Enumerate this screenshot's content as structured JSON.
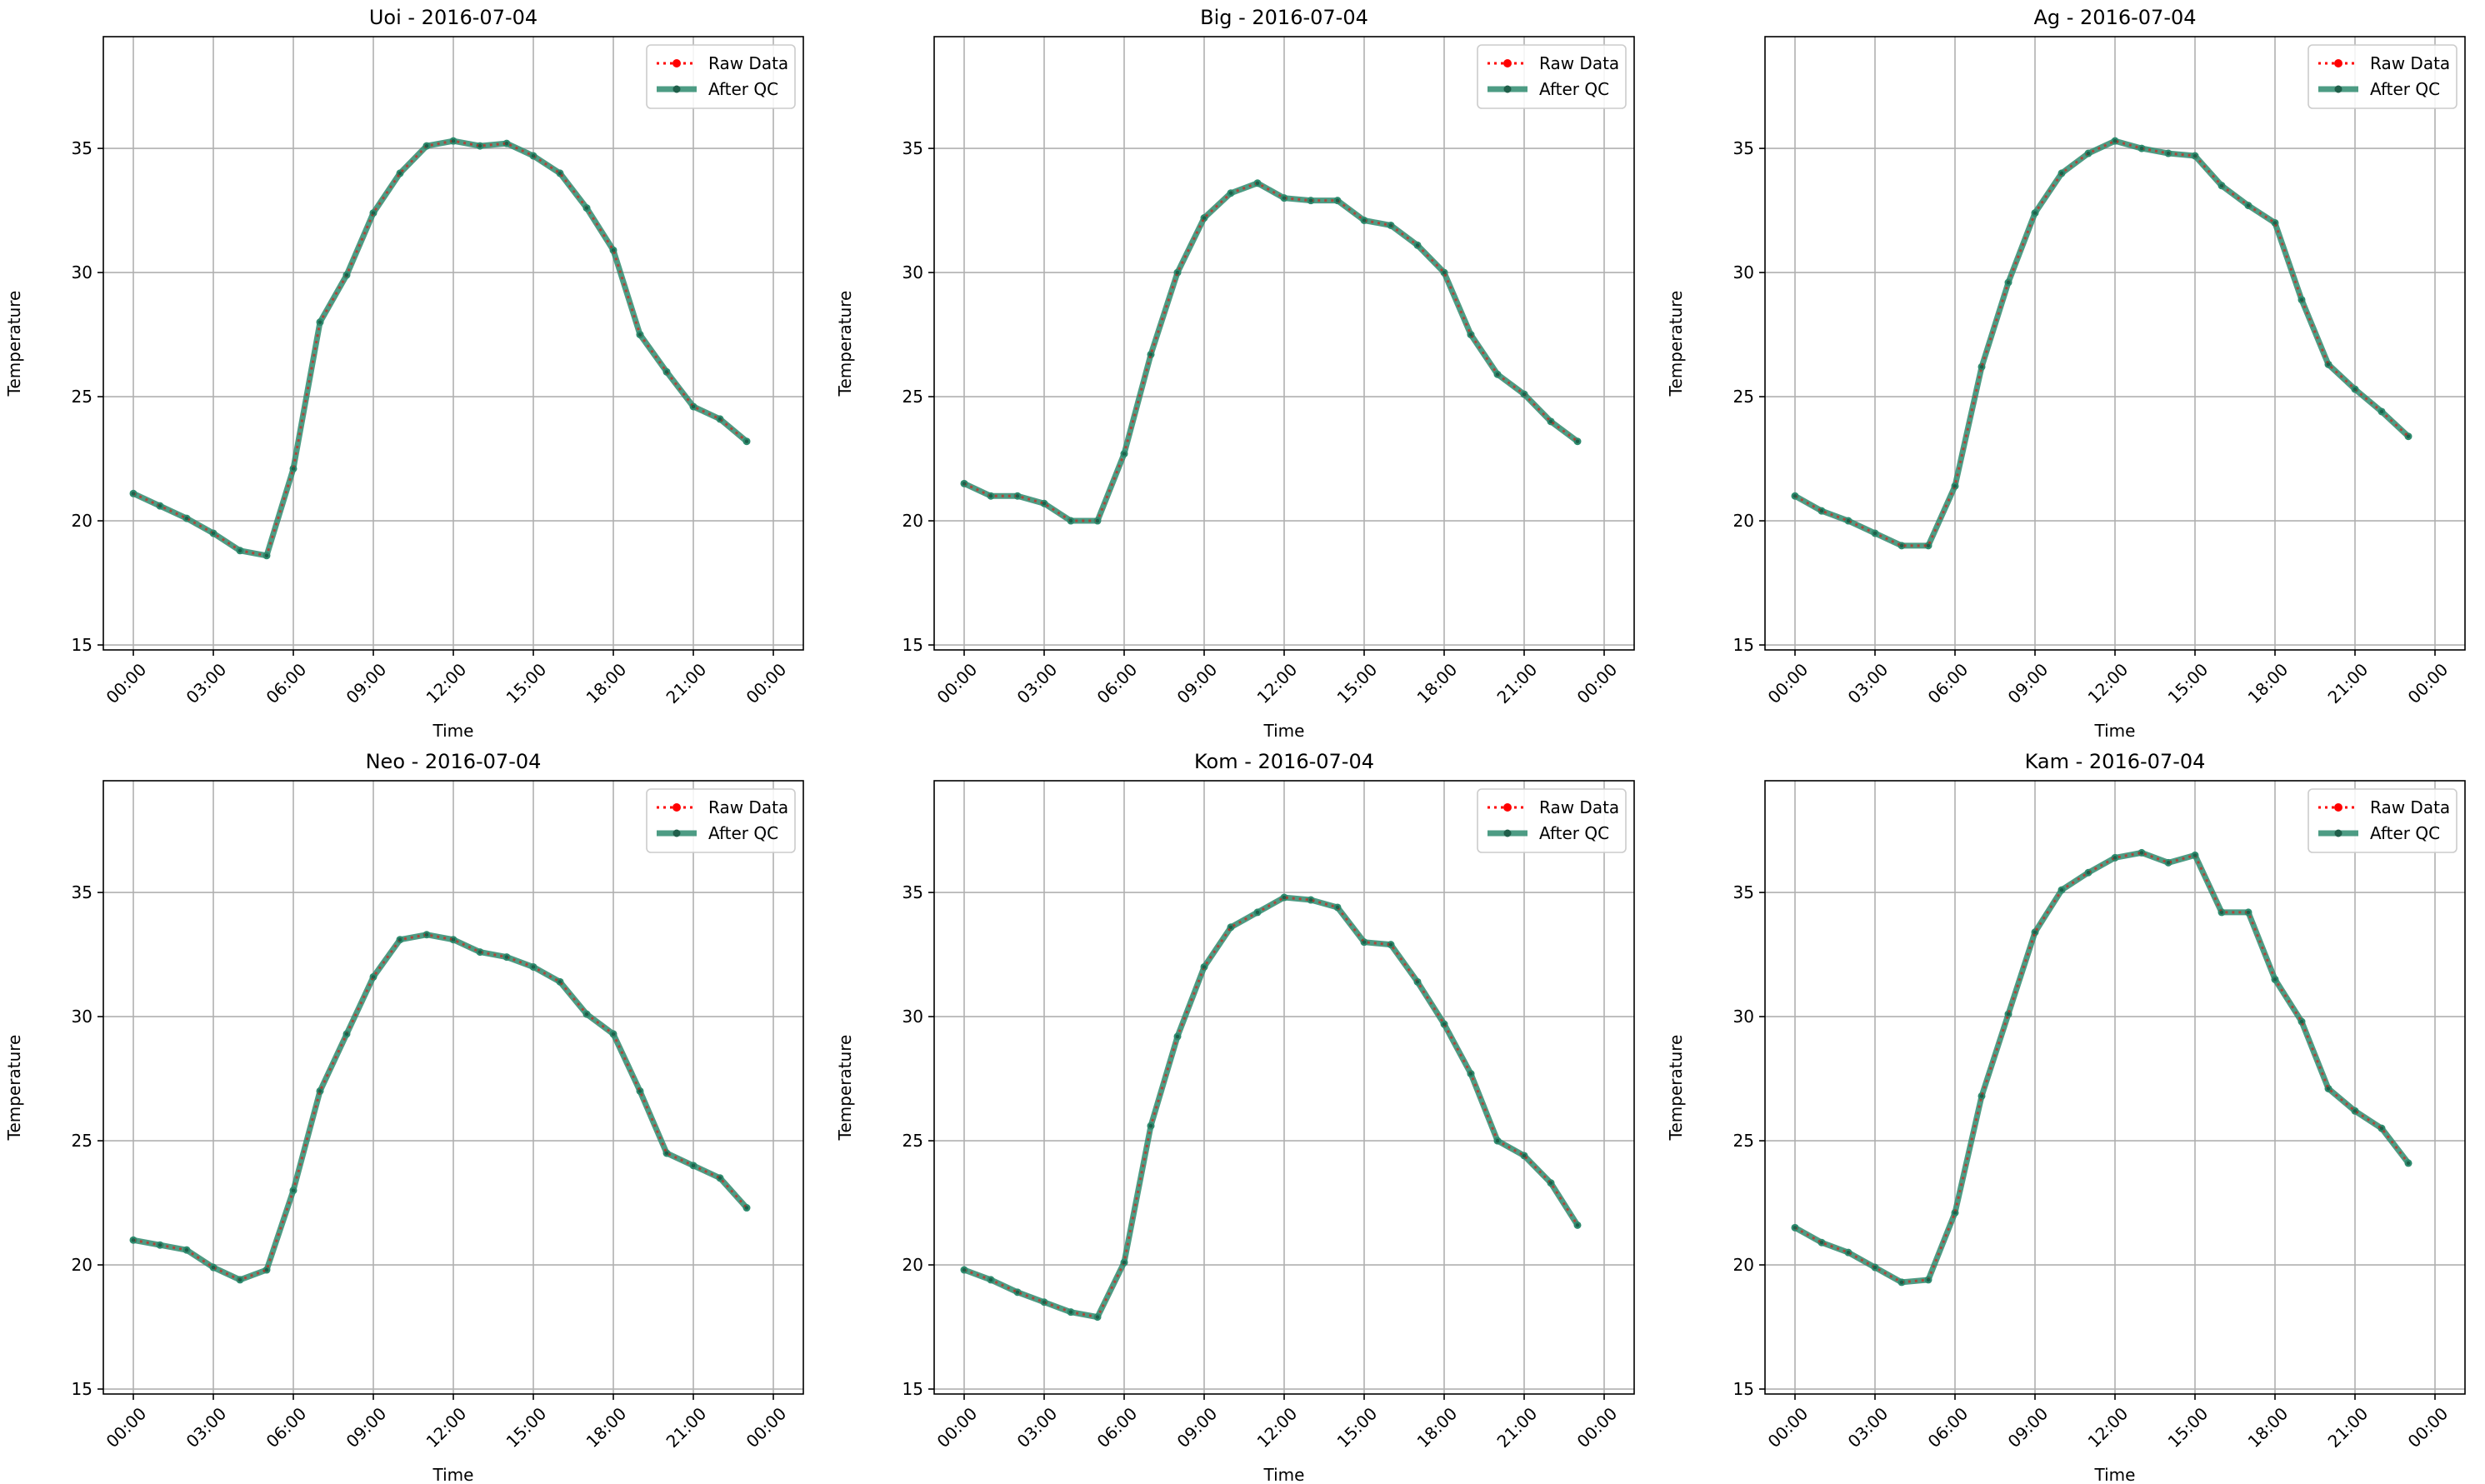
{
  "chart_data": [
    {
      "type": "line",
      "title": "Uoi - 2016-07-04",
      "xlabel": "Time",
      "ylabel": "Temperature",
      "x": [
        "00:00",
        "01:00",
        "02:00",
        "03:00",
        "04:00",
        "05:00",
        "06:00",
        "07:00",
        "08:00",
        "09:00",
        "10:00",
        "11:00",
        "12:00",
        "13:00",
        "14:00",
        "15:00",
        "16:00",
        "17:00",
        "18:00",
        "19:00",
        "20:00",
        "21:00",
        "22:00",
        "23:00"
      ],
      "xtick_labels": [
        "00:00",
        "03:00",
        "06:00",
        "09:00",
        "12:00",
        "15:00",
        "18:00",
        "21:00",
        "00:00"
      ],
      "ytick_labels": [
        "15",
        "20",
        "25",
        "30",
        "35"
      ],
      "ylim": [
        14.8,
        39.5
      ],
      "grid": true,
      "legend": "top-right",
      "series": [
        {
          "name": "Raw Data",
          "color": "#ff0000",
          "values": [
            21.1,
            20.6,
            20.1,
            19.5,
            18.8,
            18.6,
            22.1,
            28.0,
            29.9,
            32.4,
            34.0,
            35.1,
            35.3,
            35.1,
            35.2,
            34.7,
            34.0,
            32.6,
            30.9,
            27.5,
            26.0,
            24.6,
            24.1,
            23.2
          ]
        },
        {
          "name": "After QC",
          "color": "#2e8b6e",
          "values": [
            21.1,
            20.6,
            20.1,
            19.5,
            18.8,
            18.6,
            22.1,
            28.0,
            29.9,
            32.4,
            34.0,
            35.1,
            35.3,
            35.1,
            35.2,
            34.7,
            34.0,
            32.6,
            30.9,
            27.5,
            26.0,
            24.6,
            24.1,
            23.2
          ]
        }
      ]
    },
    {
      "type": "line",
      "title": "Big - 2016-07-04",
      "xlabel": "Time",
      "ylabel": "Temperature",
      "x": [
        "00:00",
        "01:00",
        "02:00",
        "03:00",
        "04:00",
        "05:00",
        "06:00",
        "07:00",
        "08:00",
        "09:00",
        "10:00",
        "11:00",
        "12:00",
        "13:00",
        "14:00",
        "15:00",
        "16:00",
        "17:00",
        "18:00",
        "19:00",
        "20:00",
        "21:00",
        "22:00",
        "23:00"
      ],
      "xtick_labels": [
        "00:00",
        "03:00",
        "06:00",
        "09:00",
        "12:00",
        "15:00",
        "18:00",
        "21:00",
        "00:00"
      ],
      "ytick_labels": [
        "15",
        "20",
        "25",
        "30",
        "35"
      ],
      "ylim": [
        14.8,
        39.5
      ],
      "grid": true,
      "legend": "top-right",
      "series": [
        {
          "name": "Raw Data",
          "color": "#ff0000",
          "values": [
            21.5,
            21.0,
            21.0,
            20.7,
            20.0,
            20.0,
            22.7,
            26.7,
            30.0,
            32.2,
            33.2,
            33.6,
            33.0,
            32.9,
            32.9,
            32.1,
            31.9,
            31.1,
            30.0,
            27.5,
            25.9,
            25.1,
            24.0,
            23.2
          ]
        },
        {
          "name": "After QC",
          "color": "#2e8b6e",
          "values": [
            21.5,
            21.0,
            21.0,
            20.7,
            20.0,
            20.0,
            22.7,
            26.7,
            30.0,
            32.2,
            33.2,
            33.6,
            33.0,
            32.9,
            32.9,
            32.1,
            31.9,
            31.1,
            30.0,
            27.5,
            25.9,
            25.1,
            24.0,
            23.2
          ]
        }
      ]
    },
    {
      "type": "line",
      "title": "Ag - 2016-07-04",
      "xlabel": "Time",
      "ylabel": "Temperature",
      "x": [
        "00:00",
        "01:00",
        "02:00",
        "03:00",
        "04:00",
        "05:00",
        "06:00",
        "07:00",
        "08:00",
        "09:00",
        "10:00",
        "11:00",
        "12:00",
        "13:00",
        "14:00",
        "15:00",
        "16:00",
        "17:00",
        "18:00",
        "19:00",
        "20:00",
        "21:00",
        "22:00",
        "23:00"
      ],
      "xtick_labels": [
        "00:00",
        "03:00",
        "06:00",
        "09:00",
        "12:00",
        "15:00",
        "18:00",
        "21:00",
        "00:00"
      ],
      "ytick_labels": [
        "15",
        "20",
        "25",
        "30",
        "35"
      ],
      "ylim": [
        14.8,
        39.5
      ],
      "grid": true,
      "legend": "top-right",
      "series": [
        {
          "name": "Raw Data",
          "color": "#ff0000",
          "values": [
            21.0,
            20.4,
            20.0,
            19.5,
            19.0,
            19.0,
            21.4,
            26.2,
            29.6,
            32.4,
            34.0,
            34.8,
            35.3,
            35.0,
            34.8,
            34.7,
            33.5,
            32.7,
            32.0,
            28.9,
            26.3,
            25.3,
            24.4,
            23.4
          ]
        },
        {
          "name": "After QC",
          "color": "#2e8b6e",
          "values": [
            21.0,
            20.4,
            20.0,
            19.5,
            19.0,
            19.0,
            21.4,
            26.2,
            29.6,
            32.4,
            34.0,
            34.8,
            35.3,
            35.0,
            34.8,
            34.7,
            33.5,
            32.7,
            32.0,
            28.9,
            26.3,
            25.3,
            24.4,
            23.4
          ]
        }
      ]
    },
    {
      "type": "line",
      "title": "Neo - 2016-07-04",
      "xlabel": "Time",
      "ylabel": "Temperature",
      "x": [
        "00:00",
        "01:00",
        "02:00",
        "03:00",
        "04:00",
        "05:00",
        "06:00",
        "07:00",
        "08:00",
        "09:00",
        "10:00",
        "11:00",
        "12:00",
        "13:00",
        "14:00",
        "15:00",
        "16:00",
        "17:00",
        "18:00",
        "19:00",
        "20:00",
        "21:00",
        "22:00",
        "23:00"
      ],
      "xtick_labels": [
        "00:00",
        "03:00",
        "06:00",
        "09:00",
        "12:00",
        "15:00",
        "18:00",
        "21:00",
        "00:00"
      ],
      "ytick_labels": [
        "15",
        "20",
        "25",
        "30",
        "35"
      ],
      "ylim": [
        14.8,
        39.5
      ],
      "grid": true,
      "legend": "top-right",
      "series": [
        {
          "name": "Raw Data",
          "color": "#ff0000",
          "values": [
            21.0,
            20.8,
            20.6,
            19.9,
            19.4,
            19.8,
            23.0,
            27.0,
            29.3,
            31.6,
            33.1,
            33.3,
            33.1,
            32.6,
            32.4,
            32.0,
            31.4,
            30.1,
            29.3,
            27.0,
            24.5,
            24.0,
            23.5,
            22.3
          ]
        },
        {
          "name": "After QC",
          "color": "#2e8b6e",
          "values": [
            21.0,
            20.8,
            20.6,
            19.9,
            19.4,
            19.8,
            23.0,
            27.0,
            29.3,
            31.6,
            33.1,
            33.3,
            33.1,
            32.6,
            32.4,
            32.0,
            31.4,
            30.1,
            29.3,
            27.0,
            24.5,
            24.0,
            23.5,
            22.3
          ]
        }
      ]
    },
    {
      "type": "line",
      "title": "Kom - 2016-07-04",
      "xlabel": "Time",
      "ylabel": "Temperature",
      "x": [
        "00:00",
        "01:00",
        "02:00",
        "03:00",
        "04:00",
        "05:00",
        "06:00",
        "07:00",
        "08:00",
        "09:00",
        "10:00",
        "11:00",
        "12:00",
        "13:00",
        "14:00",
        "15:00",
        "16:00",
        "17:00",
        "18:00",
        "19:00",
        "20:00",
        "21:00",
        "22:00",
        "23:00"
      ],
      "xtick_labels": [
        "00:00",
        "03:00",
        "06:00",
        "09:00",
        "12:00",
        "15:00",
        "18:00",
        "21:00",
        "00:00"
      ],
      "ytick_labels": [
        "15",
        "20",
        "25",
        "30",
        "35"
      ],
      "ylim": [
        14.8,
        39.5
      ],
      "grid": true,
      "legend": "top-right",
      "series": [
        {
          "name": "Raw Data",
          "color": "#ff0000",
          "values": [
            19.8,
            19.4,
            18.9,
            18.5,
            18.1,
            17.9,
            20.1,
            25.6,
            29.2,
            32.0,
            33.6,
            34.2,
            34.8,
            34.7,
            34.4,
            33.0,
            32.9,
            31.4,
            29.7,
            27.7,
            25.0,
            24.4,
            23.3,
            21.6
          ]
        },
        {
          "name": "After QC",
          "color": "#2e8b6e",
          "values": [
            19.8,
            19.4,
            18.9,
            18.5,
            18.1,
            17.9,
            20.1,
            25.6,
            29.2,
            32.0,
            33.6,
            34.2,
            34.8,
            34.7,
            34.4,
            33.0,
            32.9,
            31.4,
            29.7,
            27.7,
            25.0,
            24.4,
            23.3,
            21.6
          ]
        }
      ]
    },
    {
      "type": "line",
      "title": "Kam - 2016-07-04",
      "xlabel": "Time",
      "ylabel": "Temperature",
      "x": [
        "00:00",
        "01:00",
        "02:00",
        "03:00",
        "04:00",
        "05:00",
        "06:00",
        "07:00",
        "08:00",
        "09:00",
        "10:00",
        "11:00",
        "12:00",
        "13:00",
        "14:00",
        "15:00",
        "16:00",
        "17:00",
        "18:00",
        "19:00",
        "20:00",
        "21:00",
        "22:00",
        "23:00"
      ],
      "xtick_labels": [
        "00:00",
        "03:00",
        "06:00",
        "09:00",
        "12:00",
        "15:00",
        "18:00",
        "21:00",
        "00:00"
      ],
      "ytick_labels": [
        "15",
        "20",
        "25",
        "30",
        "35"
      ],
      "ylim": [
        14.8,
        39.5
      ],
      "grid": true,
      "legend": "top-right",
      "series": [
        {
          "name": "Raw Data",
          "color": "#ff0000",
          "values": [
            21.5,
            20.9,
            20.5,
            19.9,
            19.3,
            19.4,
            22.1,
            26.8,
            30.1,
            33.4,
            35.1,
            35.8,
            36.4,
            36.6,
            36.2,
            36.5,
            34.2,
            34.2,
            31.5,
            29.8,
            27.1,
            26.2,
            25.5,
            24.1
          ]
        },
        {
          "name": "After QC",
          "color": "#2e8b6e",
          "values": [
            21.5,
            20.9,
            20.5,
            19.9,
            19.3,
            19.4,
            22.1,
            26.8,
            30.1,
            33.4,
            35.1,
            35.8,
            36.4,
            36.6,
            36.2,
            36.5,
            34.2,
            34.2,
            31.5,
            29.8,
            27.1,
            26.2,
            25.5,
            24.1
          ]
        }
      ]
    }
  ]
}
